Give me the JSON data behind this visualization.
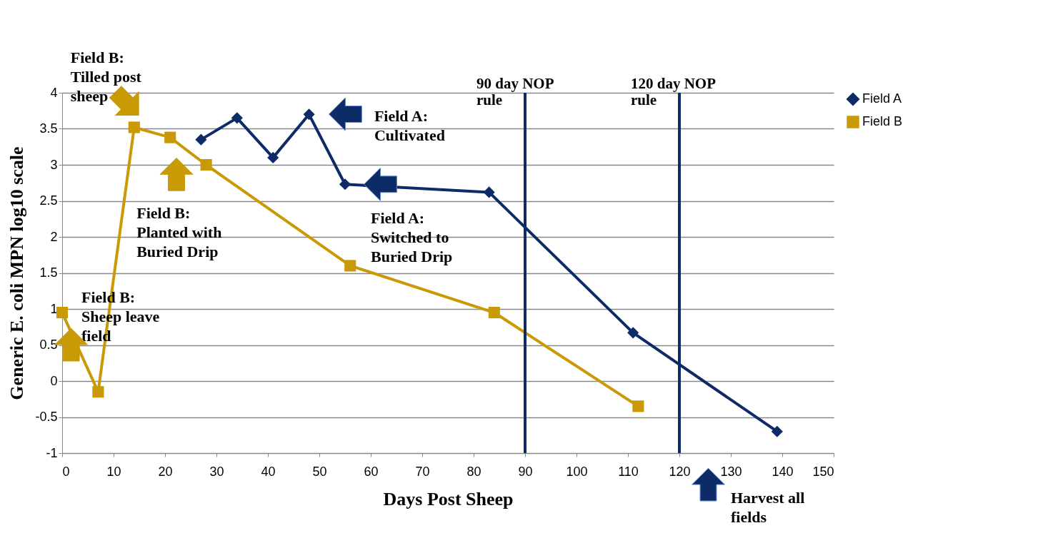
{
  "chart_data": {
    "type": "line",
    "xlabel": "Days Post Sheep",
    "ylabel": "Generic E. coli MPN log10 scale",
    "xlim": [
      0,
      150
    ],
    "xticks": [
      0,
      10,
      20,
      30,
      40,
      50,
      60,
      70,
      80,
      90,
      100,
      110,
      120,
      130,
      140,
      150
    ],
    "ylim": [
      -1,
      4
    ],
    "yticks": [
      -1,
      -0.5,
      0,
      0.5,
      1,
      1.5,
      2,
      2.5,
      3,
      3.5,
      4
    ],
    "series": [
      {
        "name": "Field A",
        "color": "#0d2b66",
        "marker": "diamond",
        "x": [
          27,
          34,
          41,
          48,
          55,
          83,
          111,
          139
        ],
        "values": [
          3.35,
          3.65,
          3.1,
          3.7,
          2.73,
          2.62,
          0.67,
          -0.7
        ]
      },
      {
        "name": "Field B",
        "color": "#c99a06",
        "marker": "square",
        "x": [
          0,
          7,
          14,
          21,
          28,
          56,
          84,
          112
        ],
        "values": [
          0.95,
          -0.15,
          3.52,
          3.38,
          3.0,
          1.6,
          0.95,
          -0.35
        ]
      }
    ],
    "ref_lines": [
      {
        "axis": "x",
        "value": 90,
        "label": "90 day NOP\nrule",
        "color": "#0d2b66"
      },
      {
        "axis": "x",
        "value": 120,
        "label": "120 day NOP\nrule",
        "color": "#0d2b66"
      }
    ],
    "annotations": [
      {
        "text": "Field B:\nSheep leave\nfield",
        "x": 0,
        "y": 0.95
      },
      {
        "text": "Field B:\nTilled post\nsheep",
        "x": 14,
        "y": 3.52
      },
      "Field B:\nPlanted with\nBuried Drip",
      "Field A:\nCultivated",
      {
        "text": "Field A:\nSwitched to\nBuried Drip",
        "x": 55,
        "y": 2.73
      },
      "Harvest all\nfields"
    ],
    "grid": "y",
    "legend": "right",
    "line_style": "solid"
  }
}
